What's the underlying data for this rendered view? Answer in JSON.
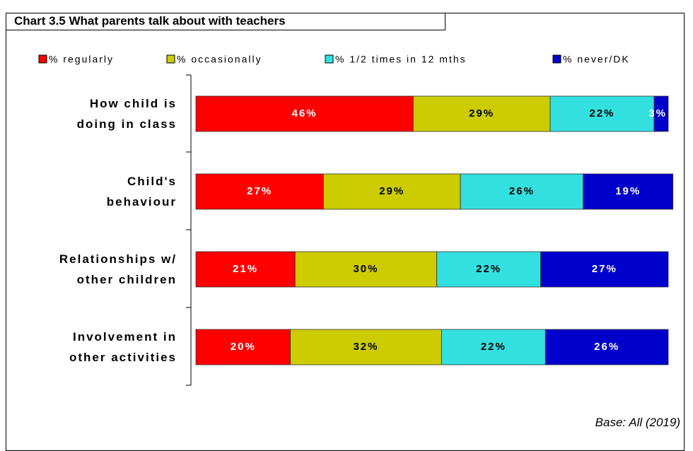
{
  "chart_data": {
    "type": "stacked_bar_horizontal",
    "title": "Chart 3.5 What parents talk about with teachers",
    "note": "Base: All (2019)",
    "categories": [
      "How child is\ndoing in class",
      "Child's\nbehaviour",
      "Relationships w/\nother children",
      "Involvement in\nother activities"
    ],
    "xlim": [
      0,
      100
    ],
    "legend": "top",
    "series": [
      {
        "name": "% regularly",
        "color": "#ff0000",
        "label_color": "#ffffff",
        "values": [
          46,
          27,
          21,
          20
        ],
        "value_labels": [
          "46%",
          "27%",
          "21%",
          "20%"
        ]
      },
      {
        "name": "% occasionally",
        "color": "#cccc00",
        "label_color": "#000000",
        "values": [
          29,
          29,
          30,
          32
        ],
        "value_labels": [
          "29%",
          "29%",
          "30%",
          "32%"
        ]
      },
      {
        "name": "% 1/2 times in 12 mths",
        "color": "#33e0e0",
        "label_color": "#000000",
        "values": [
          22,
          26,
          22,
          22
        ],
        "value_labels": [
          "22%",
          "26%",
          "22%",
          "22%"
        ]
      },
      {
        "name": "% never/DK",
        "color": "#0000cc",
        "label_color": "#ffffff",
        "values": [
          3,
          19,
          27,
          26
        ],
        "value_labels": [
          "3%",
          "19%",
          "27%",
          "26%"
        ]
      }
    ]
  }
}
